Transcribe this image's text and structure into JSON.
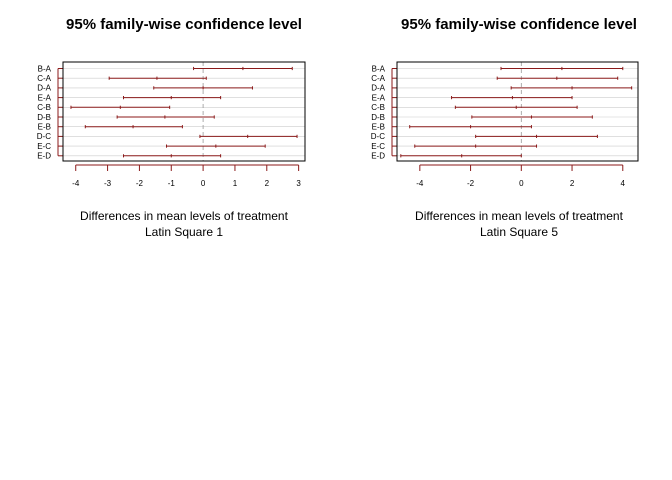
{
  "chart_data": [
    {
      "type": "interval",
      "title": "95% family-wise confidence level",
      "xlabel": "Differences in mean levels of treatment",
      "subtitle": "Latin Square 1",
      "xlim": [
        -4.4,
        3.2
      ],
      "xticks": [
        -4,
        -3,
        -2,
        -1,
        0,
        1,
        2,
        3
      ],
      "comparisons": [
        "B-A",
        "C-A",
        "D-A",
        "E-A",
        "C-B",
        "D-B",
        "E-B",
        "D-C",
        "E-C",
        "E-D"
      ],
      "lower": [
        -0.3,
        -2.95,
        -1.55,
        -2.5,
        -4.15,
        -2.7,
        -3.7,
        -0.1,
        -1.15,
        -2.5
      ],
      "estimate": [
        1.25,
        -1.45,
        0.0,
        -1.0,
        -2.6,
        -1.2,
        -2.2,
        1.4,
        0.4,
        -1.0
      ],
      "upper": [
        2.8,
        0.1,
        1.55,
        0.55,
        -1.05,
        0.35,
        -0.65,
        2.95,
        1.95,
        0.55
      ],
      "zero_line": 0,
      "grid": true,
      "colors": {
        "interval": "#8b1a1a",
        "grid": "#cccccc",
        "zero": "#999999"
      }
    },
    {
      "type": "interval",
      "title": "95% family-wise confidence level",
      "xlabel": "Differences in mean levels of treatment",
      "subtitle": "Latin Square 5",
      "xlim": [
        -4.9,
        4.6
      ],
      "xticks": [
        -4,
        -2,
        0,
        2,
        4
      ],
      "comparisons": [
        "B-A",
        "C-A",
        "D-A",
        "E-A",
        "C-B",
        "D-B",
        "E-B",
        "D-C",
        "E-C",
        "E-D"
      ],
      "lower": [
        -0.8,
        -0.95,
        -0.4,
        -2.75,
        -2.6,
        -1.95,
        -4.4,
        -1.8,
        -4.2,
        -4.75
      ],
      "estimate": [
        1.6,
        1.4,
        2.0,
        -0.35,
        -0.2,
        0.4,
        -2.0,
        0.6,
        -1.8,
        -2.35
      ],
      "upper": [
        4.0,
        3.8,
        4.35,
        2.0,
        2.2,
        2.8,
        0.4,
        3.0,
        0.6,
        0.0
      ],
      "zero_line": 0,
      "grid": true,
      "colors": {
        "interval": "#8b1a1a",
        "grid": "#cccccc",
        "zero": "#999999"
      }
    }
  ]
}
